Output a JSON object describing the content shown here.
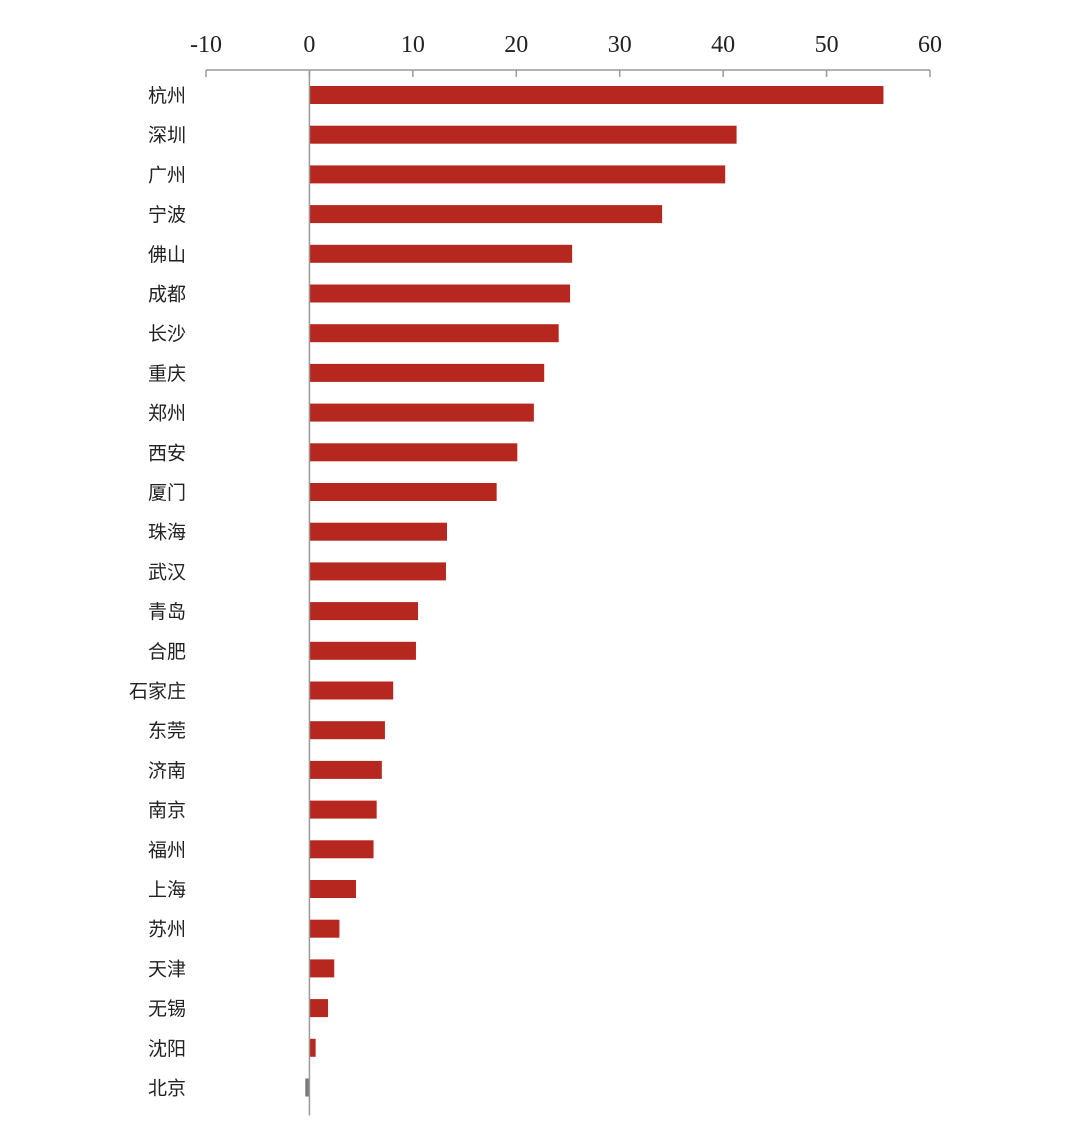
{
  "chart_data": {
    "type": "bar",
    "orientation": "horizontal",
    "title": "",
    "xlabel": "",
    "ylabel": "",
    "xlim": [
      -10,
      60
    ],
    "x_ticks": [
      "-10",
      "0",
      "10",
      "20",
      "30",
      "40",
      "50",
      "60"
    ],
    "x_axis_position": "top",
    "grid": false,
    "legend": "none",
    "bar_color": "#b5271f",
    "negative_bar_color": "#7a7a7a",
    "categories": [
      "杭州",
      "深圳",
      "广州",
      "宁波",
      "佛山",
      "成都",
      "长沙",
      "重庆",
      "郑州",
      "西安",
      "厦门",
      "珠海",
      "武汉",
      "青岛",
      "合肥",
      "石家庄",
      "东莞",
      "济南",
      "南京",
      "福州",
      "上海",
      "苏州",
      "天津",
      "无锡",
      "沈阳",
      "北京"
    ],
    "values": [
      55.5,
      41.3,
      40.2,
      34.1,
      25.4,
      25.2,
      24.1,
      22.7,
      21.7,
      20.1,
      18.1,
      13.3,
      13.2,
      10.5,
      10.3,
      8.1,
      7.3,
      7.0,
      6.5,
      6.2,
      4.5,
      2.9,
      2.4,
      1.8,
      0.6,
      -0.4
    ]
  }
}
